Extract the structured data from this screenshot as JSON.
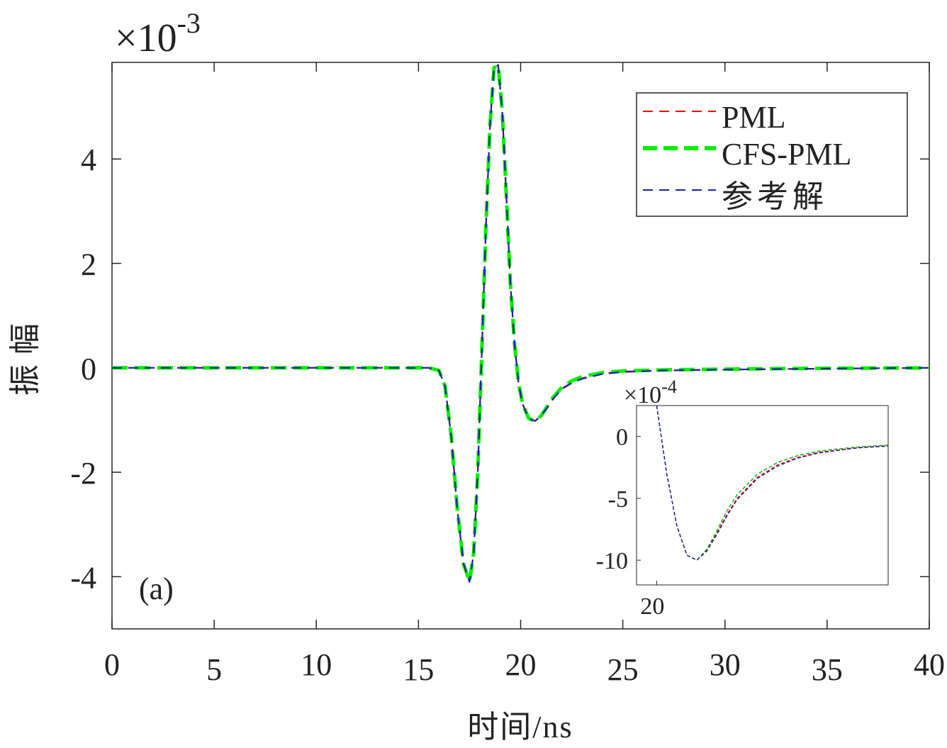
{
  "chart_data": [
    {
      "type": "line",
      "xlabel": "时间/ns",
      "ylabel": "振幅",
      "exponent": "×10-3",
      "exponent_base": "×10",
      "exponent_power": "-3",
      "panel_label": "(a)",
      "xlim": [
        0,
        40
      ],
      "ylim": [
        -5.0,
        5.85
      ],
      "xticks": [
        0,
        5,
        10,
        15,
        20,
        25,
        30,
        35,
        40
      ],
      "yticks": [
        -4,
        -2,
        0,
        2,
        4
      ],
      "ytick_labels": [
        "-4",
        "-2",
        "0",
        "2",
        "4"
      ],
      "legend": {
        "position": "top-right",
        "entries": [
          "PML",
          "CFS-PML",
          "参考解"
        ]
      },
      "series": [
        {
          "name": "PML",
          "color": "#ff0000",
          "style": "dashed-thin",
          "x": [
            0,
            15.5,
            16.0,
            16.3,
            16.6,
            16.9,
            17.2,
            17.5,
            17.7,
            17.9,
            18.1,
            18.3,
            18.5,
            18.7,
            18.9,
            19.1,
            19.3,
            19.5,
            19.7,
            19.9,
            20.1,
            20.4,
            20.7,
            21.0,
            21.3,
            21.6,
            22.0,
            22.5,
            23.0,
            24.0,
            25.0,
            27.0,
            29.0,
            31.0,
            35.0,
            40.0
          ],
          "y": [
            0,
            0,
            -0.05,
            -0.35,
            -1.3,
            -2.7,
            -3.75,
            -4.1,
            -3.55,
            -2.0,
            0.3,
            2.7,
            4.65,
            5.75,
            5.8,
            4.9,
            3.3,
            1.6,
            0.45,
            -0.3,
            -0.7,
            -0.97,
            -1.02,
            -0.92,
            -0.75,
            -0.58,
            -0.4,
            -0.28,
            -0.2,
            -0.11,
            -0.07,
            -0.05,
            -0.04,
            -0.03,
            -0.015,
            0.0
          ]
        },
        {
          "name": "CFS-PML",
          "color": "#00ee00",
          "style": "dashed-thick",
          "x": [
            0,
            15.5,
            16.0,
            16.3,
            16.6,
            16.9,
            17.2,
            17.5,
            17.7,
            17.9,
            18.1,
            18.3,
            18.5,
            18.7,
            18.9,
            19.1,
            19.3,
            19.5,
            19.7,
            19.9,
            20.1,
            20.4,
            20.7,
            21.0,
            21.3,
            21.6,
            22.0,
            22.5,
            23.0,
            24.0,
            25.0,
            27.0,
            29.0,
            31.0,
            35.0,
            40.0
          ],
          "y": [
            0,
            0,
            -0.05,
            -0.35,
            -1.3,
            -2.7,
            -3.75,
            -4.1,
            -3.55,
            -2.0,
            0.3,
            2.7,
            4.65,
            5.75,
            5.8,
            4.9,
            3.3,
            1.6,
            0.45,
            -0.3,
            -0.7,
            -0.97,
            -1.02,
            -0.92,
            -0.74,
            -0.56,
            -0.38,
            -0.25,
            -0.17,
            -0.09,
            -0.06,
            -0.04,
            -0.03,
            -0.02,
            -0.01,
            0.0
          ]
        },
        {
          "name": "参考解",
          "color": "#1f1fa0",
          "style": "dashed-thin",
          "x": [
            0,
            15.5,
            16.0,
            16.3,
            16.6,
            16.9,
            17.2,
            17.5,
            17.7,
            17.9,
            18.1,
            18.3,
            18.5,
            18.7,
            18.9,
            19.1,
            19.3,
            19.5,
            19.7,
            19.9,
            20.1,
            20.4,
            20.7,
            21.0,
            21.3,
            21.6,
            22.0,
            22.5,
            23.0,
            24.0,
            25.0,
            27.0,
            29.0,
            31.0,
            35.0,
            40.0
          ],
          "y": [
            0,
            0,
            -0.05,
            -0.35,
            -1.3,
            -2.7,
            -3.75,
            -4.1,
            -3.55,
            -2.0,
            0.3,
            2.7,
            4.65,
            5.75,
            5.8,
            4.9,
            3.3,
            1.6,
            0.45,
            -0.3,
            -0.7,
            -0.97,
            -1.02,
            -0.92,
            -0.76,
            -0.59,
            -0.41,
            -0.29,
            -0.21,
            -0.12,
            -0.08,
            -0.05,
            -0.04,
            -0.03,
            -0.015,
            0.0
          ]
        }
      ]
    },
    {
      "type": "line",
      "role": "inset",
      "exponent": "×10-4",
      "exponent_base": "×10",
      "exponent_power": "-4",
      "xlim": [
        19.0,
        31.5
      ],
      "ylim": [
        -12,
        2.5
      ],
      "xticks": [
        20
      ],
      "yticks": [
        -10,
        -5,
        0
      ],
      "ytick_labels": [
        "-10",
        "-5",
        "0"
      ],
      "series": [
        {
          "name": "PML",
          "color": "#ff0000",
          "x": [
            20.0,
            20.5,
            21.0,
            21.5,
            22.0,
            22.5,
            23.0,
            23.5,
            24.0,
            25.0,
            26.0,
            27.0,
            28.0,
            29.0,
            30.0,
            31.5
          ],
          "y": [
            2.5,
            -3.0,
            -7.2,
            -9.6,
            -10.0,
            -9.2,
            -7.8,
            -6.3,
            -5.0,
            -3.3,
            -2.3,
            -1.7,
            -1.3,
            -1.1,
            -0.9,
            -0.75
          ]
        },
        {
          "name": "CFS-PML",
          "color": "#00aa00",
          "x": [
            20.0,
            20.5,
            21.0,
            21.5,
            22.0,
            22.5,
            23.0,
            23.5,
            24.0,
            25.0,
            26.0,
            27.0,
            28.0,
            29.0,
            30.0,
            31.5
          ],
          "y": [
            2.5,
            -3.0,
            -7.2,
            -9.6,
            -10.0,
            -9.1,
            -7.6,
            -6.0,
            -4.7,
            -3.05,
            -2.1,
            -1.55,
            -1.2,
            -1.0,
            -0.85,
            -0.7
          ]
        },
        {
          "name": "参考解",
          "color": "#1f1fa0",
          "x": [
            20.0,
            20.5,
            21.0,
            21.5,
            22.0,
            22.5,
            23.0,
            23.5,
            24.0,
            25.0,
            26.0,
            27.0,
            28.0,
            29.0,
            30.0,
            31.5
          ],
          "y": [
            2.5,
            -3.0,
            -7.2,
            -9.6,
            -10.0,
            -9.25,
            -7.9,
            -6.4,
            -5.1,
            -3.4,
            -2.4,
            -1.75,
            -1.35,
            -1.12,
            -0.92,
            -0.78
          ]
        }
      ]
    }
  ]
}
